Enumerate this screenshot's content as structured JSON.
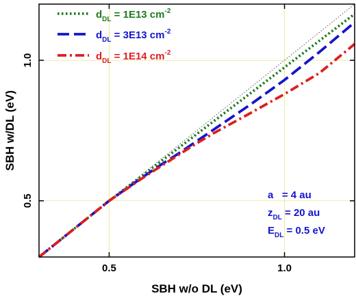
{
  "chart_data": {
    "type": "line",
    "xlabel": "SBH w/o DL  (eV)",
    "ylabel": "SBH w/DL  (eV)",
    "xlim": [
      0.3,
      1.2
    ],
    "ylim": [
      0.3,
      1.2
    ],
    "x_ticks": [
      0.5,
      1.0
    ],
    "x_tick_labels": [
      "0.5",
      "1.0"
    ],
    "y_ticks": [
      0.5,
      1.0
    ],
    "y_tick_labels": [
      "0.5",
      "1.0"
    ],
    "grid": true,
    "legend_position": "top-left",
    "reference_line": {
      "x": [
        0.3,
        1.2
      ],
      "y": [
        0.3,
        1.2
      ],
      "color": "#555555",
      "style": "dotted"
    },
    "series": [
      {
        "legend_symbol": "d",
        "legend_subscript": "DL",
        "legend_value": " = 1E13 cm",
        "legend_superscript": "-2",
        "color": "#1e7b1e",
        "style": "dotted",
        "x": [
          0.3,
          0.4,
          0.5,
          0.6,
          0.7,
          0.8,
          0.9,
          1.0,
          1.1,
          1.2
        ],
        "y": [
          0.3,
          0.4,
          0.5,
          0.595,
          0.69,
          0.785,
          0.88,
          0.975,
          1.07,
          1.165
        ]
      },
      {
        "legend_symbol": "d",
        "legend_subscript": "DL",
        "legend_value": " = 3E13 cm",
        "legend_superscript": "-2",
        "color": "#1515cc",
        "style": "dashed",
        "x": [
          0.3,
          0.4,
          0.5,
          0.6,
          0.65,
          0.7,
          0.8,
          0.9,
          1.0,
          1.1,
          1.2
        ],
        "y": [
          0.3,
          0.4,
          0.5,
          0.588,
          0.63,
          0.67,
          0.755,
          0.84,
          0.93,
          1.03,
          1.135
        ]
      },
      {
        "legend_symbol": "d",
        "legend_subscript": "DL",
        "legend_value": " = 1E14 cm",
        "legend_superscript": "-2",
        "color": "#dd1f1f",
        "style": "dashdot",
        "x": [
          0.3,
          0.4,
          0.5,
          0.6,
          0.7,
          0.75,
          0.8,
          0.9,
          1.0,
          1.1,
          1.2
        ],
        "y": [
          0.3,
          0.4,
          0.5,
          0.585,
          0.665,
          0.705,
          0.742,
          0.81,
          0.88,
          0.955,
          1.058
        ]
      }
    ],
    "annotation": {
      "color": "#1515cc",
      "lines": [
        {
          "symbol": "a",
          "subscript": "",
          "value": "   = 4 au"
        },
        {
          "symbol": "z",
          "subscript": "DL",
          "value": " = 20 au"
        },
        {
          "symbol": "E",
          "subscript": "DL",
          "value": " = 0.5 eV"
        }
      ]
    }
  }
}
